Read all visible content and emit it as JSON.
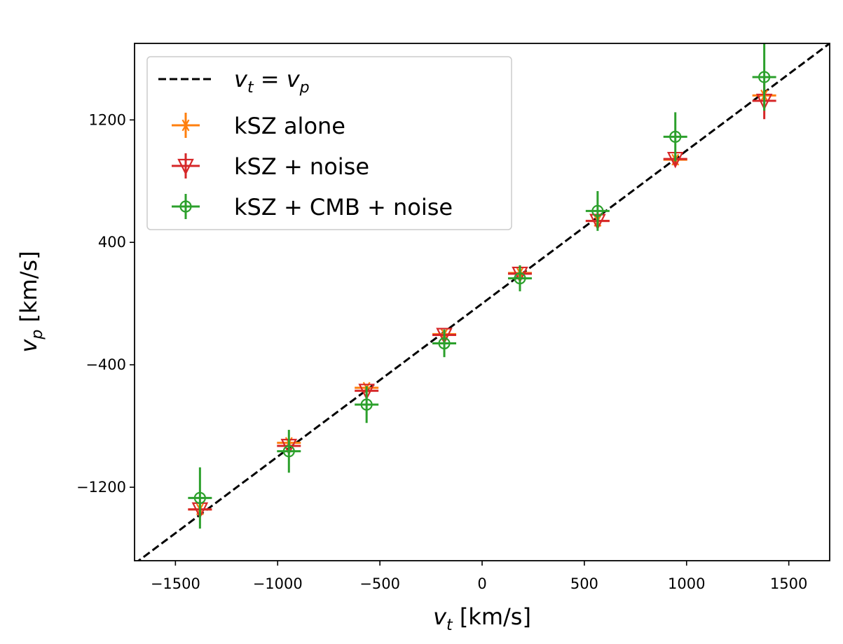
{
  "chart_data": {
    "type": "scatter",
    "title": "",
    "xlabel": {
      "var": "v",
      "sub": "t",
      "unit": " [km/s]"
    },
    "ylabel": {
      "var": "v",
      "sub": "p",
      "unit": " [km/s]"
    },
    "xlim": [
      -1700,
      1700
    ],
    "ylim": [
      -1680,
      1700
    ],
    "xticks": [
      -1500,
      -1000,
      -500,
      0,
      500,
      1000,
      1500
    ],
    "xtick_labels": [
      "−1500",
      "−1000",
      "−500",
      "0",
      "500",
      "1000",
      "1500"
    ],
    "yticks": [
      -1200,
      -400,
      400,
      1200
    ],
    "ytick_labels": [
      "−1200",
      "−400",
      "400",
      "1200"
    ],
    "grid": false,
    "legend_position": "top-left",
    "reference_line": {
      "label": {
        "v1": "v",
        "s1": "t",
        "eq": " = ",
        "v2": "v",
        "s2": "p"
      },
      "style": "dashed",
      "color": "#000000"
    },
    "x": [
      -1380,
      -945,
      -565,
      -185,
      185,
      565,
      945,
      1380
    ],
    "series": [
      {
        "name": "kSZ alone",
        "marker": "asterisk",
        "color": "#ff7f0e",
        "y": [
          -1345,
          -910,
          -550,
          -200,
          200,
          540,
          940,
          1360
        ],
        "yerr": [
          20,
          15,
          15,
          15,
          15,
          15,
          20,
          30
        ]
      },
      {
        "name": "kSZ + noise",
        "marker": "triangle-down",
        "color": "#d62728",
        "y": [
          -1345,
          -930,
          -570,
          -205,
          195,
          540,
          945,
          1325
        ],
        "yerr": [
          50,
          30,
          30,
          30,
          30,
          30,
          40,
          120
        ]
      },
      {
        "name": "kSZ + CMB + noise",
        "marker": "circle",
        "color": "#2ca02c",
        "y": [
          -1270,
          -965,
          -660,
          -260,
          165,
          605,
          1090,
          1480
        ],
        "yerr": [
          200,
          140,
          120,
          90,
          85,
          130,
          160,
          220
        ]
      }
    ]
  }
}
